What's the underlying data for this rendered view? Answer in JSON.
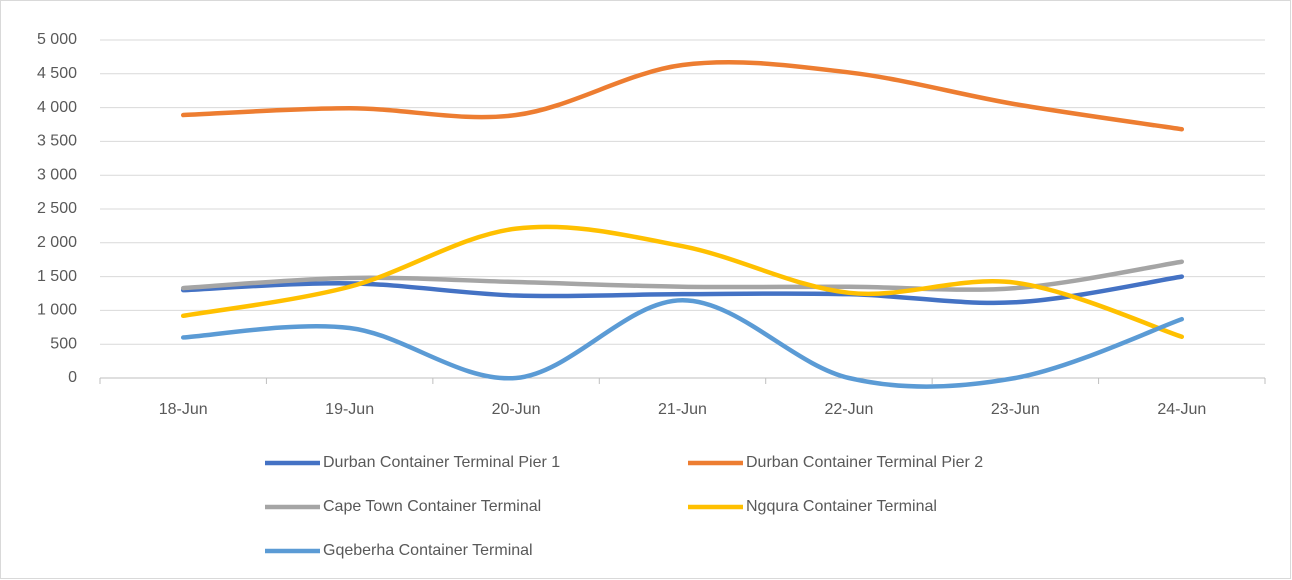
{
  "chart_data": {
    "type": "line",
    "smooth": true,
    "grid": true,
    "categories": [
      "18-Jun",
      "19-Jun",
      "20-Jun",
      "21-Jun",
      "22-Jun",
      "23-Jun",
      "24-Jun"
    ],
    "ylim": [
      0,
      5000
    ],
    "yticks": [
      0,
      500,
      {
        "value": 1000,
        "label": "1 000"
      },
      {
        "value": 1500,
        "label": "1 500"
      },
      {
        "value": 2000,
        "label": "2 000"
      },
      {
        "value": 2500,
        "label": "2 500"
      },
      {
        "value": 3000,
        "label": "3 000"
      },
      {
        "value": 3500,
        "label": "3 500"
      },
      {
        "value": 4000,
        "label": "4 000"
      },
      {
        "value": 4500,
        "label": "4 500"
      },
      {
        "value": 5000,
        "label": "5 000"
      }
    ],
    "series": [
      {
        "name": "Durban Container Terminal Pier 1",
        "color": "#4472c4",
        "values": [
          1300,
          1400,
          1220,
          1240,
          1240,
          1120,
          1500
        ]
      },
      {
        "name": "Durban Container Terminal Pier 2",
        "color": "#ed7d31",
        "values": [
          3890,
          3990,
          3890,
          4630,
          4520,
          4050,
          3680
        ]
      },
      {
        "name": "Cape Town Container Terminal",
        "color": "#a5a5a5",
        "values": [
          1330,
          1480,
          1420,
          1350,
          1350,
          1330,
          1720
        ]
      },
      {
        "name": "Ngqura Container Terminal",
        "color": "#ffc000",
        "values": [
          920,
          1350,
          2210,
          1950,
          1260,
          1410,
          610
        ]
      },
      {
        "name": "Gqeberha Container Terminal",
        "color": "#5b9bd5",
        "values": [
          600,
          740,
          0,
          1150,
          0,
          0,
          870
        ]
      }
    ]
  }
}
